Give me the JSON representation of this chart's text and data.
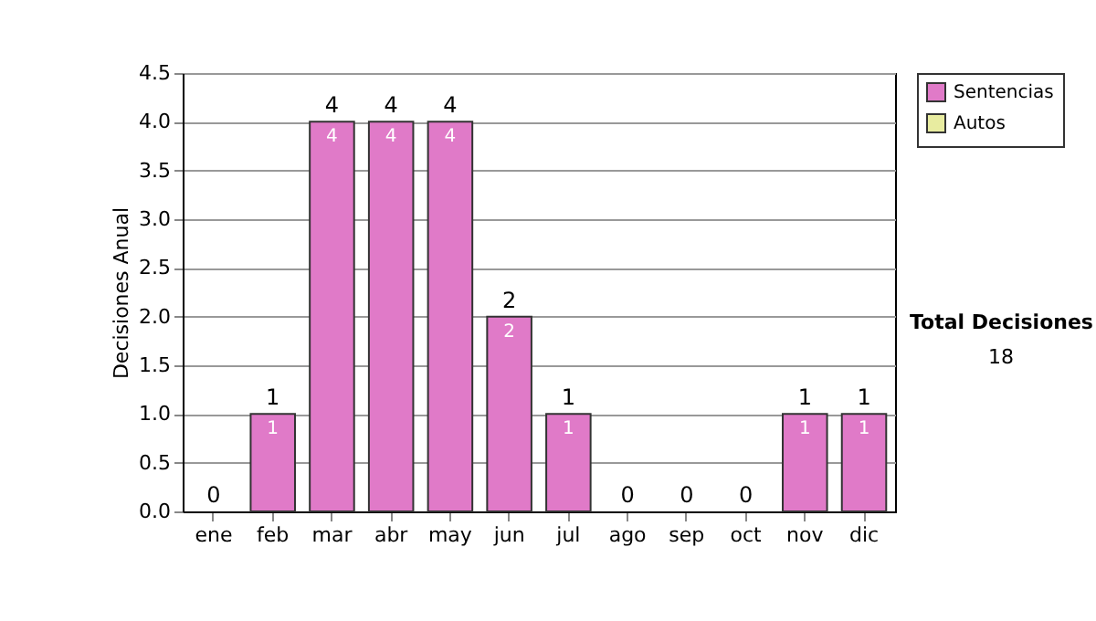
{
  "chart_data": {
    "type": "bar",
    "stacked": true,
    "ylabel": "Decisiones Anual",
    "categories": [
      "ene",
      "feb",
      "mar",
      "abr",
      "may",
      "jun",
      "jul",
      "ago",
      "sep",
      "oct",
      "nov",
      "dic"
    ],
    "series": [
      {
        "name": "Sentencias",
        "color": "#e07ac8",
        "values": [
          0,
          1,
          4,
          4,
          4,
          2,
          1,
          0,
          0,
          0,
          1,
          1
        ],
        "value_labels": [
          null,
          "1",
          "4",
          "4",
          "4",
          "2",
          "1",
          null,
          null,
          null,
          "1",
          "1"
        ]
      },
      {
        "name": "Autos",
        "color": "#e8eca0",
        "values": [
          0,
          0,
          0,
          0,
          0,
          0,
          0,
          0,
          0,
          0,
          0,
          0
        ]
      }
    ],
    "totals": [
      "0",
      "1",
      "4",
      "4",
      "4",
      "2",
      "1",
      "0",
      "0",
      "0",
      "1",
      "1"
    ],
    "ylim": [
      0,
      4.5
    ],
    "yticks": [
      {
        "value": 0,
        "label": "0.0"
      },
      {
        "value": 0.5,
        "label": "0.5"
      },
      {
        "value": 1,
        "label": "1.0"
      },
      {
        "value": 1.5,
        "label": "1.5"
      },
      {
        "value": 2,
        "label": "2.0"
      },
      {
        "value": 2.5,
        "label": "2.5"
      },
      {
        "value": 3,
        "label": "3.0"
      },
      {
        "value": 3.5,
        "label": "3.5"
      },
      {
        "value": 4,
        "label": "4.0"
      },
      {
        "value": 4.5,
        "label": "4.5"
      }
    ],
    "grid": "y",
    "legend": "right",
    "annotations": [
      "Total Decisiones",
      "18"
    ]
  }
}
